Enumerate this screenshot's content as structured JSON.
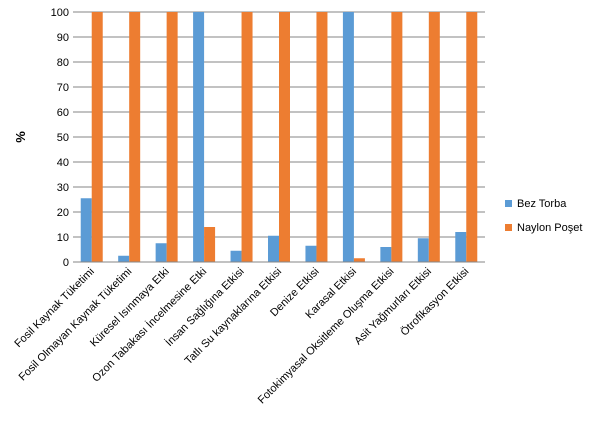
{
  "chart_data": {
    "type": "bar",
    "ylabel": "%",
    "ylim": [
      0,
      100
    ],
    "yticks": [
      0,
      10,
      20,
      30,
      40,
      50,
      60,
      70,
      80,
      90,
      100
    ],
    "grid": true,
    "legend_position": "right",
    "categories": [
      "Fosil Kaynak Tüketimi",
      "Fosil Olmayan Kaynak Tüketimi",
      "Küresel Isınmaya Etki",
      "Ozon Tabakası İncelmesine Etki",
      "İnsan Sağlığına Etkisi",
      "Tatlı Su kaynaklarına Etkisi",
      "Denize Etkisi",
      "Karasal Etkisi",
      "Fotokimyasal Oksitleme Oluşma Etkisi",
      "Asit Yağmurları Etkisi",
      "Ötrofikasyon Etkisi"
    ],
    "series": [
      {
        "name": "Bez Torba",
        "color": "#5B9BD5",
        "values": [
          25.5,
          2.5,
          7.5,
          100,
          4.5,
          10.5,
          6.5,
          100,
          6,
          9.5,
          12
        ]
      },
      {
        "name": "Naylon Poşet",
        "color": "#ED7D31",
        "values": [
          100,
          100,
          100,
          14,
          100,
          100,
          100,
          1.5,
          100,
          100,
          100
        ]
      }
    ]
  }
}
